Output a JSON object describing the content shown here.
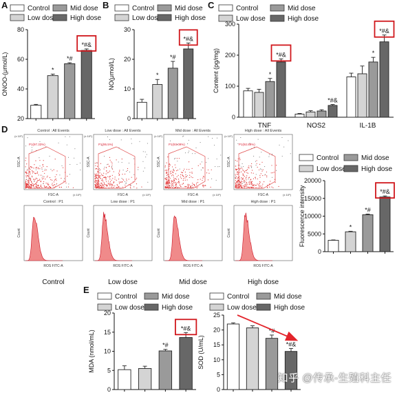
{
  "panels": {
    "a": "A",
    "b": "B",
    "c": "C",
    "d": "D",
    "e": "E"
  },
  "colors": {
    "control": "#ffffff",
    "low": "#d4d4d4",
    "mid": "#9a9a9a",
    "high": "#676767",
    "highlight": "#d0161b",
    "flow": "#f08a8a",
    "arrow": "#e3242b"
  },
  "legend_names": [
    "Control",
    "Low dose",
    "Mid dose",
    "High dose"
  ],
  "flow": {
    "groups": [
      "Control",
      "Low dose",
      "Mid dose",
      "High dose"
    ],
    "scatter_titles": [
      "Control : All Events",
      "Low dose : All Events",
      "Mid dose : All Events",
      "High dose : All Events"
    ],
    "gate_labels": [
      "P1(97.33%)",
      "P1(95.5%)",
      "P1(93.09%)",
      "P1(92.89%)"
    ],
    "hist_titles": [
      "Control : P1",
      "Low dose : P1",
      "Mid dose : P1",
      "High dose : P1"
    ],
    "scatter_xlabel": "FSC-A",
    "scatter_ylabel": "SSC-A",
    "hist_xlabel": "ROS FITC-A",
    "hist_ylabel": "Count",
    "exp_label": "(x 10⁶)"
  },
  "watermark": "知乎 @传承-生殖科主任",
  "chart_data": [
    {
      "id": "A",
      "type": "bar",
      "categories": [
        "Control",
        "Low dose",
        "Mid dose",
        "High dose"
      ],
      "values": [
        29,
        49,
        57,
        66
      ],
      "errors": [
        0.6,
        1.0,
        0.7,
        1.0
      ],
      "annotations": [
        "",
        "*",
        "*#",
        "*#&"
      ],
      "ylabel": "ONOO-(μmol/L)",
      "ylim": [
        20,
        80
      ],
      "yticks": [
        20,
        40,
        60,
        80
      ],
      "highlight_index": 3
    },
    {
      "id": "B",
      "type": "bar",
      "categories": [
        "Control",
        "Low dose",
        "Mid dose",
        "High dose"
      ],
      "values": [
        5.5,
        11.5,
        17,
        23.5
      ],
      "errors": [
        1.0,
        1.7,
        2.3,
        2.0
      ],
      "annotations": [
        "",
        "*",
        "*#",
        "*#&"
      ],
      "ylabel": "NO(μmol/L)",
      "ylim": [
        0,
        30
      ],
      "yticks": [
        0,
        10,
        20,
        30
      ],
      "highlight_index": 3
    },
    {
      "id": "C",
      "type": "bar",
      "categories": [
        "TNF",
        "NOS2",
        "IL-1B"
      ],
      "series": [
        {
          "name": "Control",
          "values": [
            85,
            10,
            130
          ],
          "errors": [
            8,
            2,
            12
          ]
        },
        {
          "name": "Low dose",
          "values": [
            80,
            17,
            140
          ],
          "errors": [
            10,
            4,
            25
          ]
        },
        {
          "name": "Mid dose",
          "values": [
            115,
            20,
            178
          ],
          "errors": [
            10,
            4,
            15
          ]
        },
        {
          "name": "High dose",
          "values": [
            178,
            38,
            243
          ],
          "errors": [
            10,
            3,
            22
          ]
        }
      ],
      "annotations": [
        [
          "",
          "",
          "*",
          "*#&"
        ],
        [
          "",
          "",
          "",
          "*#&"
        ],
        [
          "",
          "",
          "*",
          "*#&"
        ]
      ],
      "ylabel": "Content (pg/mg)",
      "ylim": [
        0,
        300
      ],
      "yticks": [
        0,
        100,
        200,
        300
      ],
      "highlight": [
        [
          0,
          3
        ],
        [
          2,
          3
        ]
      ]
    },
    {
      "id": "D",
      "type": "bar",
      "categories": [
        "Control",
        "Low dose",
        "Mid dose",
        "High dose"
      ],
      "values": [
        3200,
        5600,
        10400,
        15400
      ],
      "errors": [
        100,
        150,
        200,
        300
      ],
      "annotations": [
        "",
        "*",
        "*#",
        "*#&"
      ],
      "ylabel": "Fluorescence intensity",
      "ylim": [
        0,
        20000
      ],
      "yticks": [
        0,
        5000,
        10000,
        15000,
        20000
      ],
      "highlight_index": 3
    },
    {
      "id": "E1",
      "type": "bar",
      "categories": [
        "Control",
        "Low dose",
        "Mid dose",
        "High dose"
      ],
      "values": [
        5.2,
        5.5,
        10.1,
        13.6
      ],
      "errors": [
        1.0,
        0.6,
        0.4,
        1.3
      ],
      "annotations": [
        "",
        "",
        "*#",
        "*#&"
      ],
      "ylabel": "MDA (nmol/mL)",
      "ylim": [
        0,
        20
      ],
      "yticks": [
        0,
        5,
        10,
        15,
        20
      ],
      "highlight_index": 3
    },
    {
      "id": "E2",
      "type": "bar",
      "categories": [
        "Control",
        "Low dose",
        "Mid dose",
        "High dose"
      ],
      "values": [
        22,
        20.7,
        17.2,
        12.8
      ],
      "errors": [
        0.4,
        0.7,
        1.1,
        1.0
      ],
      "annotations": [
        "",
        "",
        "*#",
        "*#&"
      ],
      "ylabel": "SOD (U/mL)",
      "ylim": [
        0,
        25
      ],
      "yticks": [
        0,
        5,
        10,
        15,
        20,
        25
      ],
      "arrow": true
    }
  ]
}
